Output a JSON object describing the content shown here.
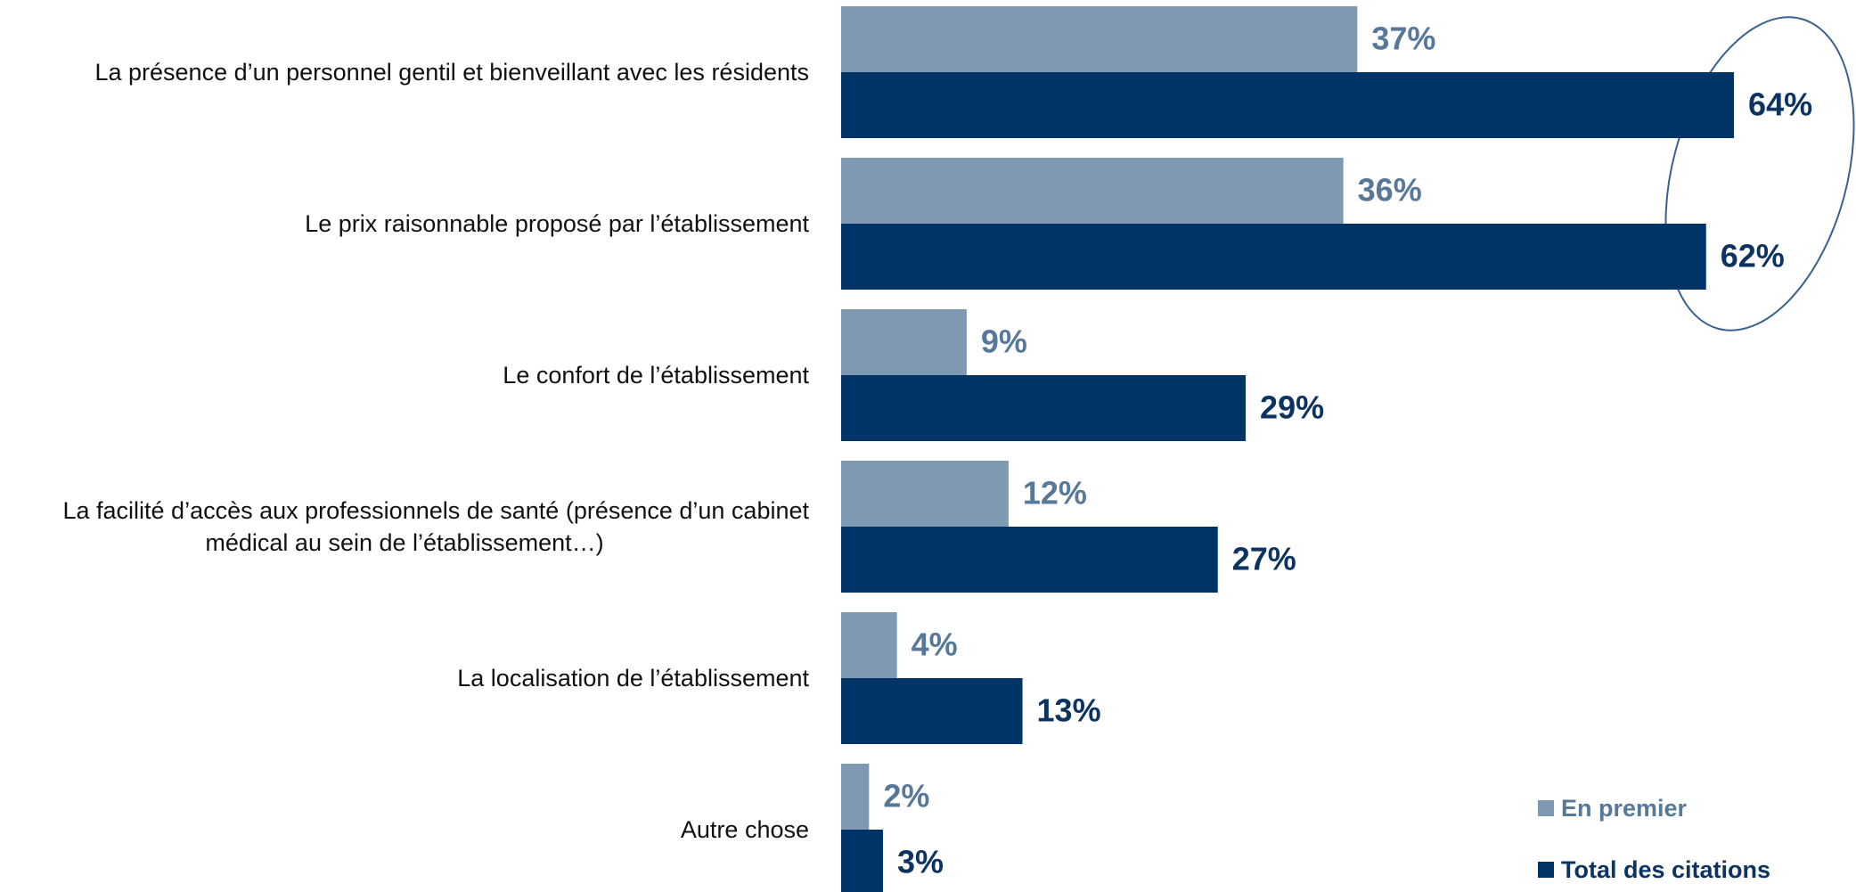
{
  "chart_data": {
    "type": "barh",
    "categories": [
      "La présence d’un personnel gentil et bienveillant avec les résidents",
      "Le prix raisonnable proposé par l’établissement",
      "Le confort de l’établissement",
      "La facilité d’accès aux professionnels de santé (présence d’un cabinet médical au sein de l’établissement…)",
      "La localisation de l’établissement",
      "Autre chose"
    ],
    "series": [
      {
        "name": "En premier",
        "color": "#7f99b2",
        "label_color": "#58789a",
        "values": [
          37,
          36,
          9,
          12,
          4,
          2
        ],
        "value_labels": [
          "37%",
          "36%",
          "9%",
          "12%",
          "4%",
          "2%"
        ]
      },
      {
        "name": "Total des citations",
        "color": "#003366",
        "label_color": "#0d3461",
        "values": [
          64,
          62,
          29,
          27,
          13,
          3
        ],
        "value_labels": [
          "64%",
          "62%",
          "29%",
          "27%",
          "13%",
          "3%"
        ]
      }
    ],
    "xlim": [
      0,
      70
    ],
    "legend": "lower right"
  }
}
